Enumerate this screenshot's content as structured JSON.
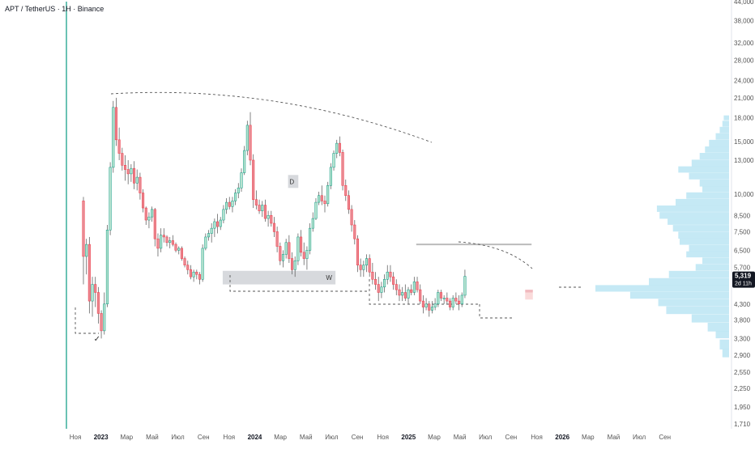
{
  "header": {
    "title": "APT / TetherUS · 1H · Binance"
  },
  "price_badge": {
    "price": "5,319",
    "countdown": "2d 11h"
  },
  "colors": {
    "up": "#089981",
    "down": "#f23645",
    "up_body": "#e6f4ef",
    "down_body": "#e88a92",
    "volume_profile": "#bfe7f4",
    "zone": "#d7d9dd",
    "dashed": "#555555",
    "badge_bg": "#131722",
    "zone_red": "#f7c2c2"
  },
  "chart_data": {
    "type": "candlestick",
    "title": "APT / TetherUS · 1H · Binance",
    "y_scale": "log",
    "y_ticks": [
      1710,
      1950,
      2250,
      2550,
      2900,
      3300,
      3800,
      4300,
      5700,
      6500,
      7500,
      8500,
      10000,
      13000,
      15000,
      18000,
      21000,
      24000,
      28000,
      32000,
      38000,
      44000
    ],
    "y_tick_labels": [
      "1,710",
      "1,950",
      "2,250",
      "2,550",
      "2,900",
      "3,300",
      "3,800",
      "4,300",
      "5,700",
      "6,500",
      "7,500",
      "8,500",
      "10,000",
      "13,000",
      "15,000",
      "18,000",
      "21,000",
      "24,000",
      "28,000",
      "32,000",
      "38,000",
      "44,000"
    ],
    "x_ticks": [
      "Ноя",
      "2023",
      "Мар",
      "Май",
      "Июл",
      "Сен",
      "Ноя",
      "2024",
      "Мар",
      "Май",
      "Июл",
      "Сен",
      "Ноя",
      "2025",
      "Мар",
      "Май",
      "Июл",
      "Сен",
      "Ноя",
      "2026",
      "Мар",
      "Май",
      "Июл",
      "Сен"
    ],
    "x_tick_bold": [
      false,
      true,
      false,
      false,
      false,
      false,
      false,
      true,
      false,
      false,
      false,
      false,
      false,
      true,
      false,
      false,
      false,
      false,
      false,
      true,
      false,
      false,
      false,
      false
    ],
    "x_tick_month_index": [
      0,
      2,
      4,
      6,
      8,
      10,
      12,
      14,
      16,
      18,
      20,
      22,
      24,
      26,
      28,
      30,
      32,
      34,
      36,
      38,
      40,
      42,
      44,
      46
    ],
    "candle_first_month_index": -0.4,
    "candles_per_month": 4.3,
    "candles": [
      [
        9500,
        9800,
        5000,
        6200
      ],
      [
        6200,
        7100,
        5400,
        6800
      ],
      [
        6800,
        7200,
        4000,
        4400
      ],
      [
        4400,
        5300,
        3900,
        5000
      ],
      [
        5000,
        5300,
        4200,
        4700
      ],
      [
        4700,
        4900,
        3700,
        4000
      ],
      [
        4000,
        4100,
        3300,
        3500
      ],
      [
        3500,
        4700,
        3400,
        4300
      ],
      [
        4300,
        7900,
        4200,
        7600
      ],
      [
        7600,
        12800,
        7300,
        12300
      ],
      [
        12300,
        20500,
        11800,
        19500
      ],
      [
        19500,
        21000,
        14500,
        15200
      ],
      [
        15200,
        16700,
        13000,
        13700
      ],
      [
        13700,
        14300,
        12000,
        12500
      ],
      [
        12500,
        13500,
        11100,
        12100
      ],
      [
        12100,
        13000,
        10800,
        11700
      ],
      [
        11700,
        12600,
        11000,
        12200
      ],
      [
        12200,
        12900,
        10400,
        10900
      ],
      [
        10900,
        12100,
        10300,
        11400
      ],
      [
        11400,
        11800,
        9600,
        10100
      ],
      [
        10100,
        10400,
        8700,
        9000
      ],
      [
        9000,
        9100,
        7900,
        8200
      ],
      [
        8200,
        8700,
        7700,
        8400
      ],
      [
        8400,
        9100,
        8100,
        8900
      ],
      [
        8900,
        9000,
        6700,
        7100
      ],
      [
        7100,
        7400,
        6200,
        6600
      ],
      [
        6600,
        7700,
        6400,
        7300
      ],
      [
        7300,
        7700,
        6900,
        7200
      ],
      [
        7200,
        7300,
        6700,
        6900
      ],
      [
        6900,
        7200,
        6600,
        7000
      ],
      [
        7000,
        7300,
        6700,
        6800
      ],
      [
        6800,
        6900,
        6400,
        6500
      ],
      [
        6500,
        6700,
        6300,
        6600
      ],
      [
        6600,
        6700,
        6000,
        6100
      ],
      [
        6100,
        6200,
        5700,
        5800
      ],
      [
        5800,
        6000,
        5400,
        5600
      ],
      [
        5600,
        5800,
        5200,
        5300
      ],
      [
        5300,
        5600,
        5100,
        5500
      ],
      [
        5500,
        5600,
        5200,
        5400
      ],
      [
        5400,
        5500,
        5000,
        5200
      ],
      [
        5200,
        6800,
        5100,
        6600
      ],
      [
        6600,
        7400,
        6500,
        7200
      ],
      [
        7200,
        7600,
        7000,
        7400
      ],
      [
        7400,
        8000,
        6900,
        7700
      ],
      [
        7700,
        8300,
        7200,
        8100
      ],
      [
        8100,
        8600,
        7400,
        7800
      ],
      [
        7800,
        8400,
        7600,
        8200
      ],
      [
        8200,
        9200,
        8000,
        8900
      ],
      [
        8900,
        9700,
        8600,
        9400
      ],
      [
        9400,
        9800,
        8900,
        9100
      ],
      [
        9100,
        9800,
        8700,
        9500
      ],
      [
        9500,
        10400,
        9200,
        10100
      ],
      [
        10100,
        10900,
        9700,
        10500
      ],
      [
        10500,
        12200,
        10200,
        11800
      ],
      [
        11800,
        14500,
        11600,
        14000
      ],
      [
        14000,
        17600,
        13500,
        17000
      ],
      [
        17000,
        18800,
        12500,
        13000
      ],
      [
        13000,
        13600,
        9000,
        9600
      ],
      [
        9600,
        10300,
        8900,
        9200
      ],
      [
        9200,
        9600,
        8600,
        8800
      ],
      [
        8800,
        9500,
        8400,
        9200
      ],
      [
        9200,
        9600,
        8100,
        8300
      ],
      [
        8300,
        8800,
        7800,
        8500
      ],
      [
        8500,
        8800,
        7800,
        8000
      ],
      [
        8000,
        8400,
        7200,
        7500
      ],
      [
        7500,
        7800,
        6400,
        6700
      ],
      [
        6700,
        6900,
        5800,
        6000
      ],
      [
        6000,
        6500,
        5700,
        6300
      ],
      [
        6300,
        7100,
        6100,
        6900
      ],
      [
        6900,
        7300,
        5900,
        6100
      ],
      [
        6100,
        6400,
        5400,
        5600
      ],
      [
        5600,
        6200,
        5300,
        6000
      ],
      [
        6000,
        7400,
        5800,
        7200
      ],
      [
        7200,
        7600,
        6200,
        6400
      ],
      [
        6400,
        6900,
        5800,
        6100
      ],
      [
        6100,
        6700,
        5600,
        6500
      ],
      [
        6500,
        8000,
        6300,
        7700
      ],
      [
        7700,
        8700,
        7500,
        8300
      ],
      [
        8300,
        9700,
        8200,
        9400
      ],
      [
        9400,
        10200,
        9200,
        9900
      ],
      [
        9900,
        10700,
        9200,
        9500
      ],
      [
        9500,
        9900,
        8700,
        9300
      ],
      [
        9300,
        11000,
        9100,
        10700
      ],
      [
        10700,
        12700,
        10400,
        12300
      ],
      [
        12300,
        14000,
        12000,
        13700
      ],
      [
        13700,
        15200,
        13200,
        14800
      ],
      [
        14800,
        15600,
        13400,
        13800
      ],
      [
        13800,
        14100,
        10300,
        10700
      ],
      [
        10700,
        11200,
        9500,
        9900
      ],
      [
        9900,
        10300,
        8600,
        8900
      ],
      [
        8900,
        9200,
        7500,
        7900
      ],
      [
        7900,
        8200,
        6800,
        7100
      ],
      [
        7100,
        7300,
        5500,
        5800
      ],
      [
        5800,
        6100,
        5300,
        5600
      ],
      [
        5600,
        6000,
        5300,
        5800
      ],
      [
        5800,
        6300,
        5500,
        6100
      ],
      [
        6100,
        6300,
        5300,
        5500
      ],
      [
        5500,
        5900,
        5000,
        5200
      ],
      [
        5200,
        5500,
        4800,
        5000
      ],
      [
        5000,
        5300,
        4400,
        4700
      ],
      [
        4700,
        5100,
        4500,
        4900
      ],
      [
        4900,
        5400,
        4700,
        5200
      ],
      [
        5200,
        5800,
        5000,
        5500
      ],
      [
        5500,
        5800,
        5100,
        5300
      ],
      [
        5300,
        5500,
        4800,
        5000
      ],
      [
        5000,
        5200,
        4600,
        4800
      ],
      [
        4800,
        5000,
        4400,
        4600
      ],
      [
        4600,
        4900,
        4400,
        4700
      ],
      [
        4700,
        5000,
        4400,
        4500
      ],
      [
        4500,
        4900,
        4300,
        4800
      ],
      [
        4800,
        5000,
        4600,
        4700
      ],
      [
        4700,
        5300,
        4600,
        5100
      ],
      [
        5100,
        5300,
        4700,
        4800
      ],
      [
        4800,
        5000,
        4300,
        4400
      ],
      [
        4400,
        4600,
        4000,
        4200
      ],
      [
        4200,
        4500,
        4100,
        4300
      ],
      [
        4300,
        4400,
        3900,
        4100
      ],
      [
        4100,
        4400,
        4000,
        4200
      ],
      [
        4200,
        4500,
        4100,
        4300
      ],
      [
        4300,
        4800,
        4200,
        4700
      ],
      [
        4700,
        4800,
        4400,
        4500
      ],
      [
        4500,
        4600,
        4300,
        4500
      ],
      [
        4500,
        4700,
        4300,
        4400
      ],
      [
        4400,
        4500,
        4100,
        4200
      ],
      [
        4200,
        4600,
        4100,
        4500
      ],
      [
        4500,
        4700,
        4300,
        4400
      ],
      [
        4400,
        4600,
        4100,
        4300
      ],
      [
        4300,
        4700,
        4200,
        4600
      ],
      [
        4600,
        5600,
        4500,
        5319
      ]
    ],
    "volume_profile": {
      "price_levels": [
        2950,
        3150,
        3400,
        3600,
        3850,
        4100,
        4350,
        4600,
        4850,
        5100,
        5400,
        5700,
        6000,
        6300,
        6600,
        6950,
        7300,
        7700,
        8100,
        8500,
        8950,
        9400,
        9900,
        10400,
        10900,
        11500,
        12100,
        12700,
        13400,
        14100,
        14800,
        15600,
        16400,
        17200,
        18000
      ],
      "volume": [
        0.05,
        0.07,
        0.1,
        0.16,
        0.28,
        0.47,
        0.53,
        0.74,
        1.0,
        0.6,
        0.45,
        0.25,
        0.2,
        0.32,
        0.3,
        0.37,
        0.38,
        0.42,
        0.46,
        0.52,
        0.54,
        0.4,
        0.32,
        0.2,
        0.22,
        0.3,
        0.38,
        0.28,
        0.22,
        0.18,
        0.15,
        0.1,
        0.07,
        0.05,
        0.04
      ]
    },
    "zones": [
      {
        "label": "W",
        "price_low": 5000,
        "price_high": 5550,
        "month_start": 11.5,
        "month_end": 20.3
      },
      {
        "label": "D",
        "price_low": 10500,
        "price_high": 11600,
        "month_start": 16.6,
        "month_end": 17.4
      }
    ],
    "levels": [
      {
        "price": 6800,
        "month_start": 26.6,
        "month_end": 35.6,
        "style": "solid"
      },
      {
        "price": 4800,
        "month_start": 35.1,
        "month_end": 35.7,
        "style": "red_zone",
        "price_low": 4450,
        "price_high": 4700
      }
    ],
    "annotations": [
      {
        "text": "✓",
        "price": 3230,
        "month": 0.8
      }
    ]
  }
}
